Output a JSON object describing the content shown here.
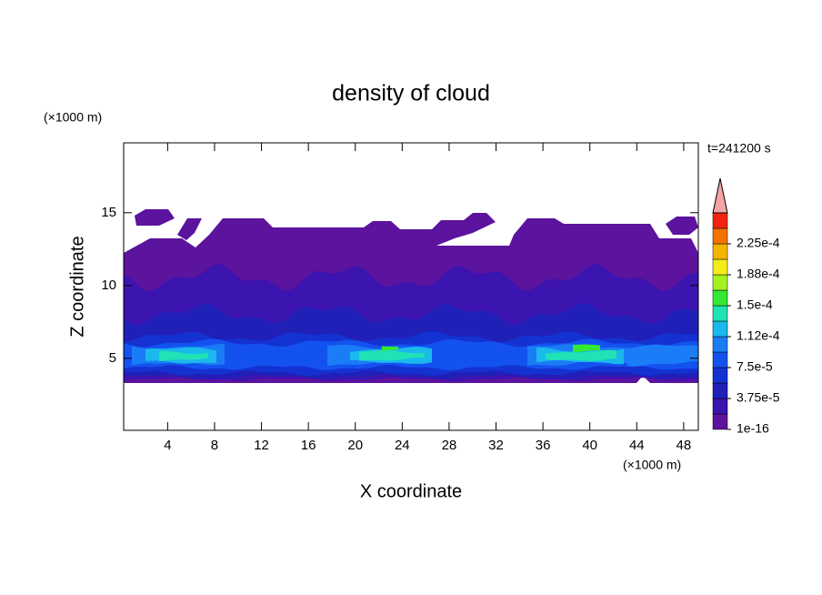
{
  "chart_data": {
    "type": "contour",
    "title": "density of cloud",
    "x_label": "X coordinate",
    "y_label": "Z coordinate",
    "x_unit": "(×1000 m)",
    "y_unit": "(×1000 m)",
    "time_label": "t=241200 s",
    "xlim": [
      0.25,
      49.25
    ],
    "ylim": [
      0.05,
      19.8
    ],
    "xticks": [
      4,
      8,
      12,
      16,
      20,
      24,
      28,
      32,
      36,
      40,
      44,
      48
    ],
    "yticks": [
      5,
      10,
      15
    ],
    "levels": [
      1e-16,
      1.875e-05,
      3.75e-05,
      5.625e-05,
      7.5e-05,
      9.375e-05,
      0.0001125,
      0.00013125,
      0.00015,
      0.00016875,
      0.0001875,
      0.00020625,
      0.000225,
      0.00024375
    ],
    "colors": [
      "#5c139e",
      "#3c14b0",
      "#2020b8",
      "#1432d2",
      "#1452f0",
      "#1a7cf6",
      "#1ab8ec",
      "#20e2b4",
      "#34e834",
      "#a4f020",
      "#f2ec18",
      "#f4b400",
      "#f47200",
      "#f22410"
    ],
    "over_color": "#f4a4a4",
    "colorbar_ticks": [
      {
        "value": 1e-16,
        "label": "1e-16"
      },
      {
        "value": 3.75e-05,
        "label": "3.75e-5"
      },
      {
        "value": 7.5e-05,
        "label": "7.5e-5"
      },
      {
        "value": 0.0001125,
        "label": "1.12e-4"
      },
      {
        "value": 0.00015,
        "label": "1.5e-4"
      },
      {
        "value": 0.0001875,
        "label": "1.88e-4"
      },
      {
        "value": 0.000225,
        "label": "2.25e-4"
      }
    ]
  }
}
